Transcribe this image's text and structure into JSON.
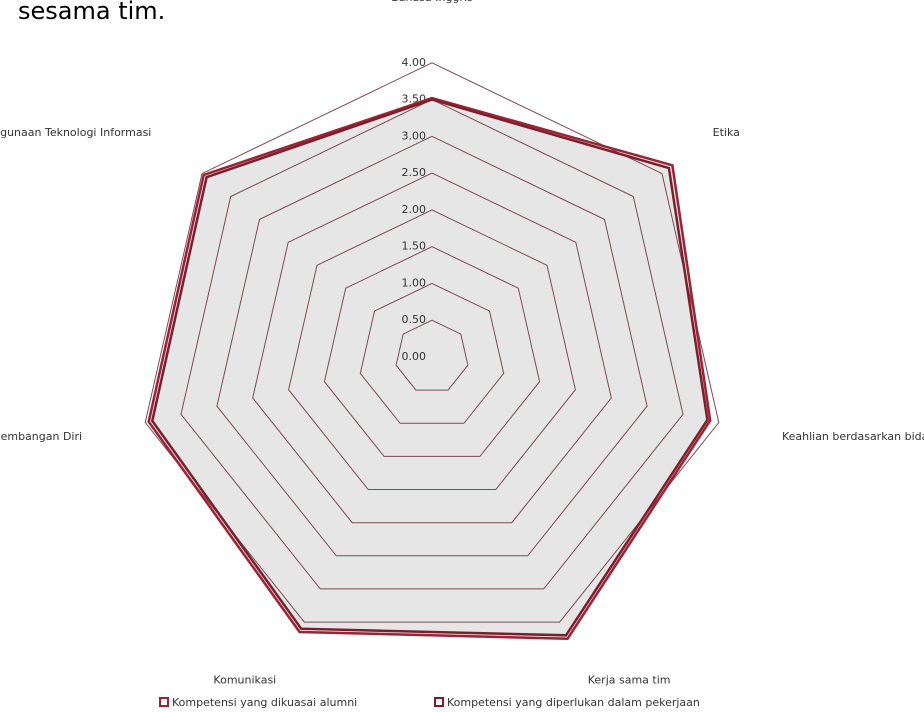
{
  "chart_data": {
    "type": "radar",
    "title": "sesama tim.",
    "categories": [
      "Bahasa Inggris",
      "Etika",
      "Keahlian berdasarkan bidang ilmu",
      "Kerja sama tim",
      "Komunikasi",
      "Pengembangan Diri",
      "Penggunaan Teknologi Informasi"
    ],
    "series": [
      {
        "name": "Kompetensi yang dikuasai alumni",
        "color": "#9b2335",
        "values": [
          3.52,
          4.18,
          3.88,
          4.25,
          4.15,
          3.95,
          3.97
        ]
      },
      {
        "name": "Kompetensi yang diperlukan dalam pekerjaan",
        "color": "#7a1f2e",
        "values": [
          3.5,
          4.12,
          3.84,
          4.2,
          4.1,
          3.9,
          3.92
        ]
      }
    ],
    "ylim": [
      0,
      4.5
    ],
    "yticks": [
      {
        "value": 0,
        "label": "0.00"
      },
      {
        "value": 0.5,
        "label": "0.50"
      },
      {
        "value": 1,
        "label": "1.00"
      },
      {
        "value": 1.5,
        "label": "1.50"
      },
      {
        "value": 2,
        "label": "2.00"
      },
      {
        "value": 2.5,
        "label": "2.50"
      },
      {
        "value": 3,
        "label": "3.00"
      },
      {
        "value": 3.5,
        "label": "3.50"
      },
      {
        "value": 4,
        "label": "4.00"
      }
    ],
    "grid": true,
    "grid_color": "#7b4a55",
    "area_fill": "#e6e6e6",
    "legend": "bottom"
  }
}
